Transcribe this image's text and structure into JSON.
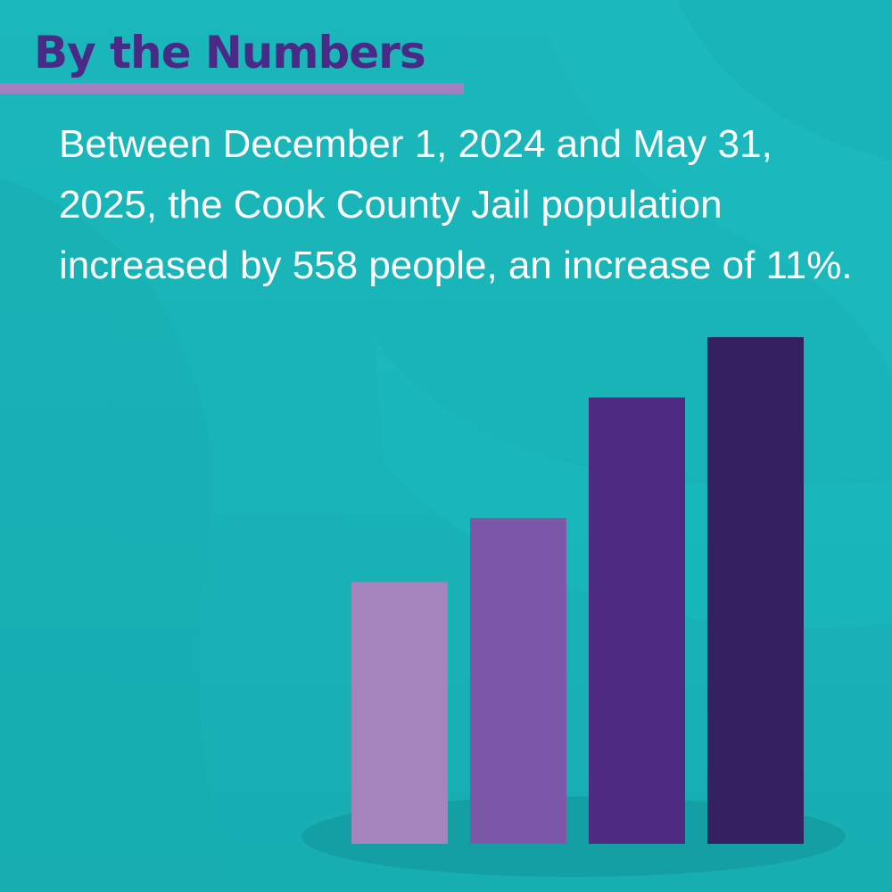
{
  "header": {
    "title": "By the Numbers"
  },
  "body": {
    "text": "Between December 1, 2024 and May 31, 2025, the Cook County Jail population increased by 558 people, an increase of 11%."
  },
  "colors": {
    "background": "#19b5b9",
    "title": "#4a2a86",
    "title_rule": "#a57fc0",
    "body_text": "#ffffff",
    "bar_shadow": "#139fa3"
  },
  "illustration": {
    "type": "decorative-rising-bars",
    "bars": [
      {
        "relative_height": 0.517,
        "color": "#a584bd"
      },
      {
        "relative_height": 0.643,
        "color": "#7e58a8"
      },
      {
        "relative_height": 0.881,
        "color": "#4f2b82"
      },
      {
        "relative_height": 1.0,
        "color": "#332161"
      }
    ]
  }
}
